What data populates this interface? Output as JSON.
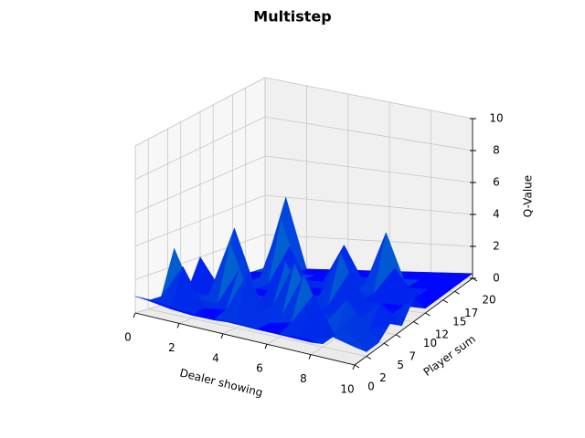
{
  "chart_data": {
    "type": "surface3d",
    "title": "Multistep",
    "x_label": "Dealer showing",
    "y_label": "Player sum",
    "z_label": "Q-Value",
    "x": [
      0,
      1,
      2,
      3,
      4,
      5,
      6,
      7,
      8,
      9,
      10
    ],
    "y": [
      0,
      2,
      4,
      6,
      8,
      10,
      12,
      14,
      16,
      18,
      20
    ],
    "z": [
      [
        1,
        1,
        0.8,
        0.8,
        0.8,
        0.8,
        0.8,
        0.8,
        0.8,
        1.5,
        1.2
      ],
      [
        0.5,
        0.3,
        0.2,
        0.2,
        0.3,
        0.2,
        0.2,
        0.3,
        0.2,
        1.5,
        0.3
      ],
      [
        0.5,
        2.5,
        0.3,
        0.5,
        3,
        0.2,
        0.5,
        2.5,
        0.3,
        2,
        0.3
      ],
      [
        3,
        0.3,
        0.3,
        2.5,
        0.3,
        0.3,
        3,
        0.3,
        2,
        0.3,
        1
      ],
      [
        0.3,
        0.3,
        3.5,
        0.3,
        0.3,
        3,
        0.3,
        0.3,
        0.3,
        1.5,
        0.3
      ],
      [
        2,
        0.3,
        0.3,
        0.3,
        2.5,
        0.3,
        0.3,
        2.5,
        0.3,
        0.3,
        1.5
      ],
      [
        0.3,
        3.5,
        0.3,
        0.3,
        0.3,
        0.3,
        3,
        0.3,
        0.3,
        0.3,
        0.3
      ],
      [
        0.3,
        0.3,
        0.3,
        2.5,
        0.3,
        0.3,
        0.3,
        0.3,
        2,
        0.3,
        0.3
      ],
      [
        0.3,
        0.3,
        3.5,
        0.3,
        0.3,
        2.5,
        0.3,
        3.5,
        0.3,
        0.3,
        0.3
      ],
      [
        0.3,
        0.3,
        0.3,
        0.3,
        0.3,
        0.3,
        0.3,
        0.3,
        0.3,
        0.3,
        0.3
      ],
      [
        0.3,
        4,
        0.3,
        0.3,
        0.3,
        0.3,
        0.3,
        0.3,
        0.3,
        0.3,
        0.3
      ]
    ],
    "colormap": [
      "#0000ff",
      "#00ff80"
    ],
    "xlim": [
      0,
      10
    ],
    "ylim": [
      0,
      20
    ],
    "zlim": [
      0,
      10
    ],
    "xticks": [
      0,
      2,
      4,
      6,
      8,
      10
    ],
    "yticks": [
      0,
      2,
      5,
      7,
      10,
      12,
      15,
      17,
      20
    ],
    "zticks": [
      0,
      2,
      4,
      6,
      8,
      10
    ],
    "grid": true
  }
}
